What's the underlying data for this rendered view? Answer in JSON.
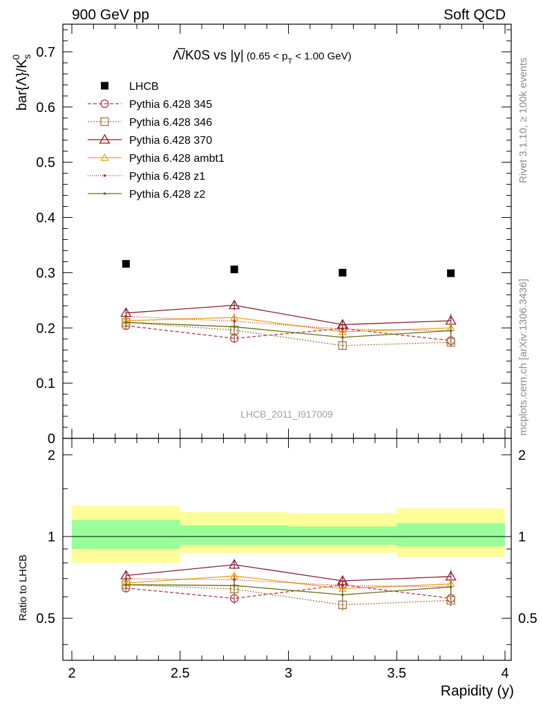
{
  "header": {
    "left": "900 GeV pp",
    "right": "Soft QCD"
  },
  "side_labels": {
    "rivet": "Rivet 3.1.10, ≥ 100k events",
    "mcplots": "mcplots.cern.ch [arXiv:1306.3436]"
  },
  "chart_data": {
    "type": "line",
    "title_main": "Λ̅/K0S vs |y|",
    "title_cut_prefix": "(0.65 < p",
    "title_cut_sub": "T",
    "title_cut_suffix": " < 1.00 GeV)",
    "ylabel_main": "bar{Λ}/K",
    "ylabel_sup": "0",
    "ylabel_sub": "s",
    "ylabel_ratio": "Ratio to LHCB",
    "xlabel": "Rapidity (y)",
    "watermark": "LHCB_2011_I917009",
    "xlim": [
      2,
      4
    ],
    "ylim_main": [
      0,
      0.75
    ],
    "ylim_ratio": [
      0.35,
      2.3
    ],
    "x_ticks": [
      {
        "value": 2,
        "label": "2"
      },
      {
        "value": 2.5,
        "label": "2.5"
      },
      {
        "value": 3,
        "label": "3"
      },
      {
        "value": 3.5,
        "label": "3.5"
      },
      {
        "value": 4,
        "label": "4"
      }
    ],
    "y_ticks_main": [
      {
        "value": 0,
        "label": "0"
      },
      {
        "value": 0.1,
        "label": "0.1"
      },
      {
        "value": 0.2,
        "label": "0.2"
      },
      {
        "value": 0.3,
        "label": "0.3"
      },
      {
        "value": 0.4,
        "label": "0.4"
      },
      {
        "value": 0.5,
        "label": "0.5"
      },
      {
        "value": 0.6,
        "label": "0.6"
      },
      {
        "value": 0.7,
        "label": "0.7"
      }
    ],
    "y_ticks_ratio": [
      {
        "value": 0.5,
        "label": "0.5"
      },
      {
        "value": 1,
        "label": "1"
      },
      {
        "value": 2,
        "label": "2"
      }
    ],
    "bins": [
      [
        2.0,
        2.5
      ],
      [
        2.5,
        3.0
      ],
      [
        3.0,
        3.5
      ],
      [
        3.5,
        4.0
      ]
    ],
    "x": [
      2.25,
      2.75,
      3.25,
      3.75
    ],
    "data": {
      "name": "LHCB",
      "values": [
        0.316,
        0.306,
        0.3,
        0.299
      ]
    },
    "ratio_band_inner": [
      [
        0.9,
        1.15
      ],
      [
        0.93,
        1.1
      ],
      [
        0.93,
        1.09
      ],
      [
        0.92,
        1.12
      ]
    ],
    "ratio_band_outer": [
      [
        0.8,
        1.3
      ],
      [
        0.87,
        1.23
      ],
      [
        0.87,
        1.22
      ],
      [
        0.84,
        1.27
      ]
    ],
    "series": [
      {
        "name": "Pythia 6.428 345",
        "color": "#b03848",
        "dash": "5,3",
        "marker": "circle",
        "values": [
          0.204,
          0.181,
          0.199,
          0.177
        ],
        "err": [
          0.007,
          0.008,
          0.008,
          0.009
        ]
      },
      {
        "name": "Pythia 6.428 346",
        "color": "#a07830",
        "dash": "2,2",
        "marker": "square",
        "values": [
          0.21,
          0.196,
          0.168,
          0.174
        ],
        "err": [
          0.007,
          0.008,
          0.008,
          0.009
        ]
      },
      {
        "name": "Pythia 6.428 370",
        "color": "#8b1c2c",
        "dash": "",
        "marker": "triangle",
        "values": [
          0.227,
          0.241,
          0.206,
          0.213
        ],
        "err": [
          0.008,
          0.009,
          0.009,
          0.012
        ]
      },
      {
        "name": "Pythia 6.428 ambt1",
        "color": "#f0a010",
        "dash": "",
        "marker": "triangle-small",
        "values": [
          0.213,
          0.219,
          0.193,
          0.2
        ],
        "err": [
          0.007,
          0.008,
          0.008,
          0.009
        ]
      },
      {
        "name": "Pythia 6.428 z1",
        "color": "#c82020",
        "dash": "1,2",
        "marker": "dot",
        "values": [
          0.221,
          0.212,
          0.198,
          0.195
        ],
        "err": [
          0.007,
          0.008,
          0.008,
          0.01
        ]
      },
      {
        "name": "Pythia 6.428 z2",
        "color": "#6b6b10",
        "dash": "",
        "marker": "dot",
        "values": [
          0.21,
          0.202,
          0.183,
          0.195
        ],
        "err": [
          0.007,
          0.008,
          0.008,
          0.009
        ]
      }
    ],
    "colors": {
      "data": "#000000",
      "band_inner": "#99ff99",
      "band_outer": "#ffff99",
      "side_text": "#8c8c8c"
    }
  }
}
